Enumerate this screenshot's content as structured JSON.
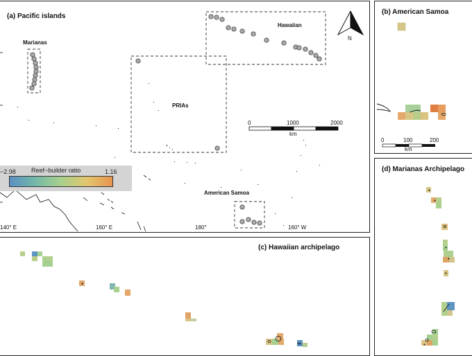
{
  "panels": {
    "a": {
      "title": "(a) Pacific islands",
      "regions": {
        "marianas": "Marianas",
        "hawaiian": "Hawaiian",
        "prias": "PRIAs",
        "american_samoa": "American Samoa"
      },
      "lon_ticks": [
        "140° E",
        "160° E",
        "180°",
        "160° W"
      ],
      "north": "N",
      "scale": {
        "ticks": [
          "0",
          "1000",
          "2000"
        ],
        "unit": "km"
      },
      "legend": {
        "title": "Reef−builder ratio",
        "min": "−2.98",
        "max": "1.16"
      }
    },
    "b": {
      "title": "(b) American Samoa",
      "scale": {
        "ticks": [
          "0",
          "100",
          "200"
        ],
        "unit": "km"
      }
    },
    "c": {
      "title": "(c) Hawaiian archipelago"
    },
    "d": {
      "title": "(d) Marianas Archipelago"
    }
  },
  "colors": {
    "grid_low": "#5b8fc2",
    "grid_mid": "#a8d08d",
    "grid_high": "#e89550",
    "site_marker": "#a9a9a9"
  }
}
